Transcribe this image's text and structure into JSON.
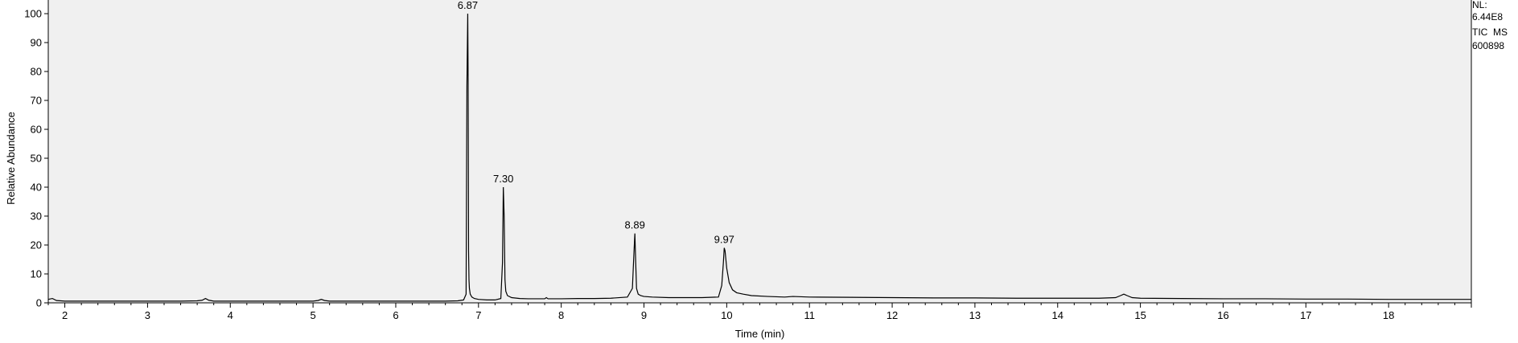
{
  "chart_data": {
    "type": "line",
    "xlabel": "Time (min)",
    "ylabel": "Relative Abundance",
    "xlim": [
      1.8,
      19.0
    ],
    "ylim": [
      0,
      100
    ],
    "x_ticks": [
      2,
      3,
      4,
      5,
      6,
      7,
      8,
      9,
      10,
      11,
      12,
      13,
      14,
      15,
      16,
      17,
      18
    ],
    "y_ticks": [
      0,
      10,
      20,
      30,
      40,
      50,
      60,
      70,
      80,
      90,
      100
    ],
    "grid": false,
    "colors": {
      "plot_bg": "#f0f0f0",
      "trace": "#000000"
    },
    "info": {
      "nl_label": "NL:",
      "nl_value": "6.44E8",
      "scan": "TIC  MS",
      "file": "600898"
    },
    "peaks": [
      {
        "label": "6.87",
        "rt": 6.87,
        "height": 100
      },
      {
        "label": "7.30",
        "rt": 7.3,
        "height": 40
      },
      {
        "label": "8.89",
        "rt": 8.89,
        "height": 24
      },
      {
        "label": "9.97",
        "rt": 9.97,
        "height": 19
      }
    ],
    "series": [
      {
        "x": [
          1.8,
          1.85,
          1.9,
          2.0,
          2.2,
          2.4,
          2.6,
          2.8,
          3.0,
          3.2,
          3.4,
          3.6,
          3.66,
          3.7,
          3.74,
          3.8,
          4.0,
          4.2,
          4.4,
          4.6,
          4.8,
          5.0,
          5.06,
          5.1,
          5.14,
          5.2,
          5.4,
          5.6,
          5.8,
          6.0,
          6.2,
          6.4,
          6.6,
          6.75,
          6.82,
          6.85,
          6.86,
          6.87,
          6.875,
          6.88,
          6.885,
          6.89,
          6.9,
          6.92,
          6.95,
          7.0,
          7.1,
          7.2,
          7.27,
          7.29,
          7.3,
          7.31,
          7.32,
          7.33,
          7.35,
          7.4,
          7.5,
          7.6,
          7.8,
          7.82,
          7.84,
          8.0,
          8.2,
          8.4,
          8.6,
          8.8,
          8.86,
          8.88,
          8.89,
          8.9,
          8.91,
          8.93,
          8.96,
          9.0,
          9.1,
          9.3,
          9.5,
          9.7,
          9.9,
          9.94,
          9.96,
          9.97,
          9.98,
          10.0,
          10.03,
          10.07,
          10.12,
          10.2,
          10.3,
          10.5,
          10.7,
          10.8,
          11.0,
          11.5,
          12.0,
          12.5,
          13.0,
          13.5,
          14.0,
          14.5,
          14.7,
          14.76,
          14.8,
          14.84,
          14.9,
          15.0,
          15.5,
          16.0,
          16.5,
          17.0,
          17.5,
          18.0,
          18.5,
          19.0
        ],
        "y": [
          1.2,
          1.5,
          0.8,
          0.6,
          0.6,
          0.6,
          0.6,
          0.6,
          0.6,
          0.6,
          0.6,
          0.7,
          0.9,
          1.5,
          0.9,
          0.6,
          0.6,
          0.6,
          0.6,
          0.6,
          0.6,
          0.6,
          0.8,
          1.2,
          0.8,
          0.6,
          0.6,
          0.6,
          0.6,
          0.6,
          0.6,
          0.6,
          0.6,
          0.7,
          1.0,
          3.0,
          75.0,
          100.0,
          76.0,
          18.0,
          8.0,
          5.0,
          3.0,
          2.0,
          1.5,
          1.2,
          1.0,
          1.0,
          1.5,
          14.0,
          40.0,
          30.0,
          8.0,
          4.0,
          2.5,
          1.8,
          1.5,
          1.4,
          1.4,
          1.8,
          1.4,
          1.4,
          1.5,
          1.5,
          1.6,
          2.0,
          5.0,
          18.0,
          24.0,
          14.0,
          5.0,
          3.0,
          2.5,
          2.2,
          2.0,
          1.8,
          1.8,
          1.8,
          2.0,
          6.0,
          14.0,
          19.0,
          18.0,
          12.0,
          7.0,
          4.5,
          3.5,
          3.0,
          2.5,
          2.2,
          2.0,
          2.2,
          2.0,
          1.9,
          1.8,
          1.7,
          1.7,
          1.6,
          1.6,
          1.6,
          1.8,
          2.5,
          3.0,
          2.5,
          1.8,
          1.6,
          1.5,
          1.4,
          1.4,
          1.3,
          1.3,
          1.2,
          1.2,
          1.2
        ]
      }
    ]
  }
}
